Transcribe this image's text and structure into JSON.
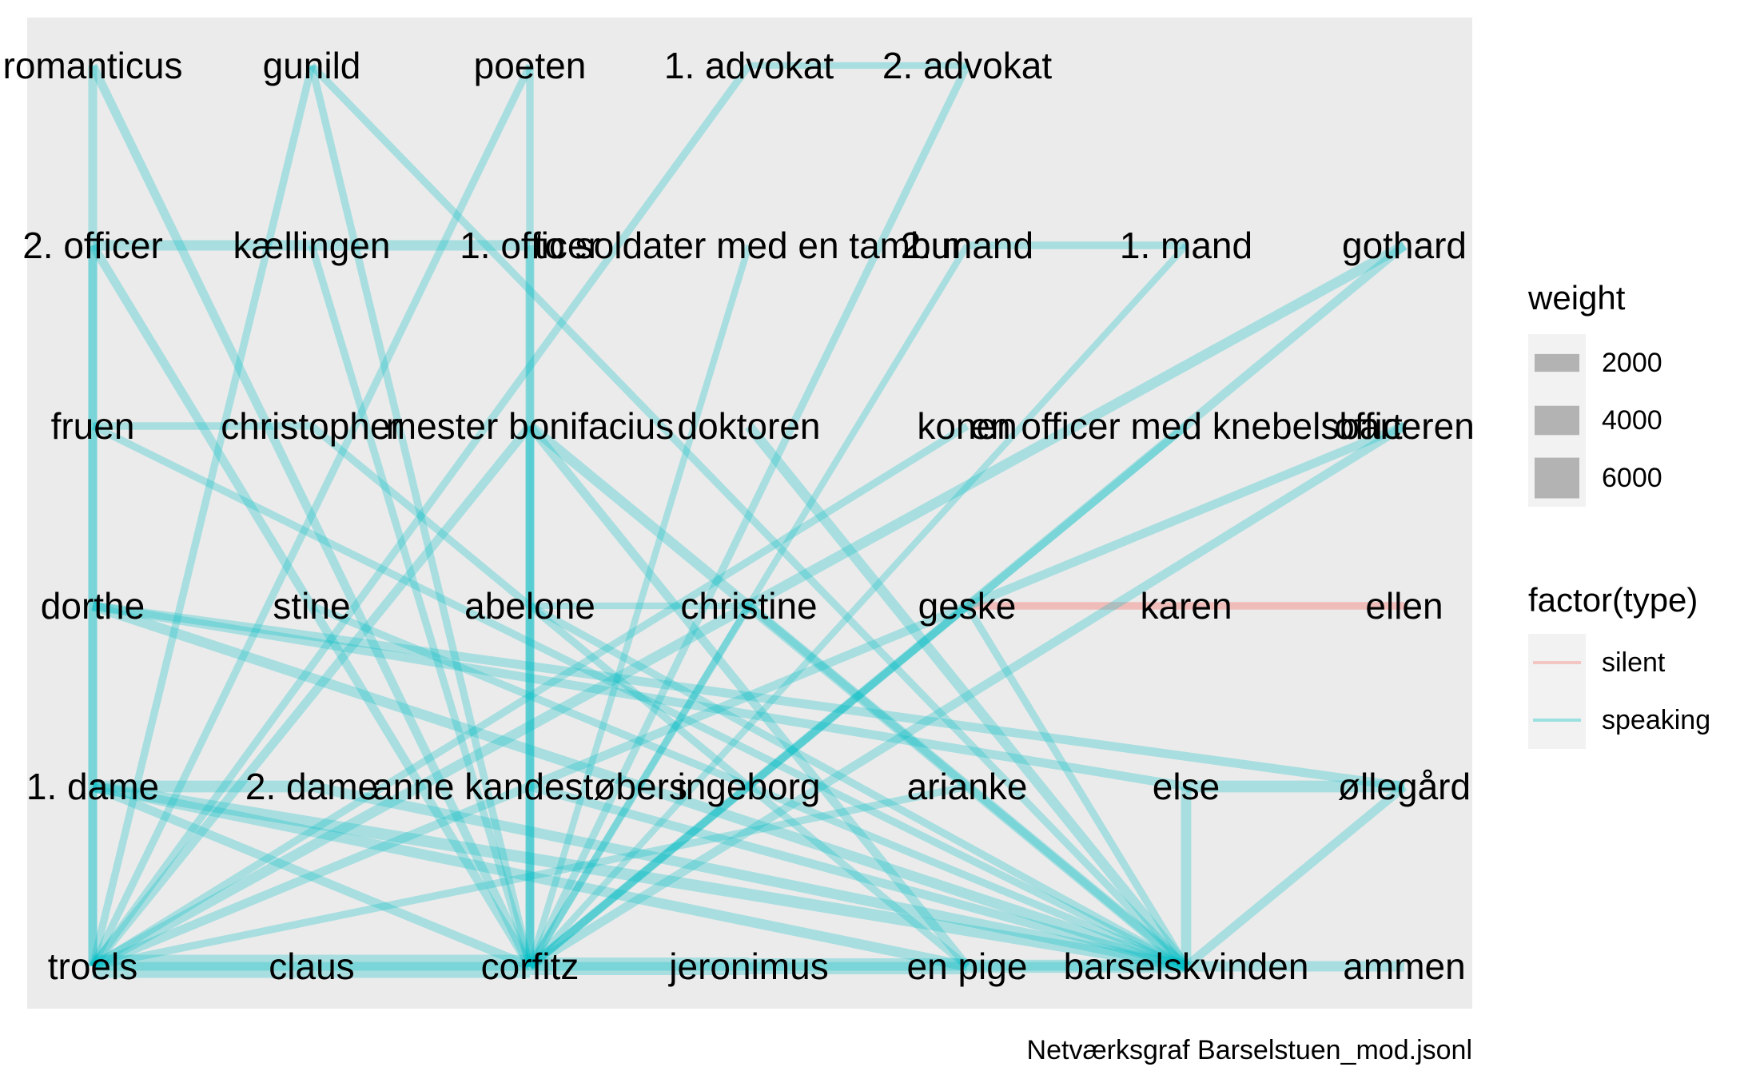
{
  "caption": "Netværksgraf Barselstuen_mod.jsonl",
  "colors": {
    "panel": "#EBEBEB",
    "speaking": "#00BFC4",
    "silent": "#F8766D",
    "weight_key": "#B3B3B3",
    "legend_bg": "#F2F2F2"
  },
  "legend": {
    "weight": {
      "title": "weight",
      "items": [
        {
          "label": "2000",
          "value": 2000
        },
        {
          "label": "4000",
          "value": 4000
        },
        {
          "label": "6000",
          "value": 6000
        }
      ]
    },
    "type": {
      "title": "factor(type)",
      "items": [
        {
          "label": "silent",
          "key": "silent"
        },
        {
          "label": "speaking",
          "key": "speaking"
        }
      ]
    }
  },
  "nodes": [
    {
      "id": "romanticus",
      "label": "romanticus",
      "col": 0,
      "row": 0
    },
    {
      "id": "gunild",
      "label": "gunild",
      "col": 1,
      "row": 0
    },
    {
      "id": "poeten",
      "label": "poeten",
      "col": 2,
      "row": 0
    },
    {
      "id": "advokat1",
      "label": "1. advokat",
      "col": 3,
      "row": 0
    },
    {
      "id": "advokat2",
      "label": "2. advokat",
      "col": 4,
      "row": 0
    },
    {
      "id": "officer2",
      "label": "2. officer",
      "col": 0,
      "row": 1
    },
    {
      "id": "kaellingen",
      "label": "kællingen",
      "col": 1,
      "row": 1
    },
    {
      "id": "officer1",
      "label": "1. officer",
      "col": 2,
      "row": 1
    },
    {
      "id": "soldater",
      "label": "to soldater med en tambur",
      "col": 3,
      "row": 1
    },
    {
      "id": "mand2",
      "label": "2. mand",
      "col": 4,
      "row": 1
    },
    {
      "id": "mand1",
      "label": "1. mand",
      "col": 5,
      "row": 1
    },
    {
      "id": "gothard",
      "label": "gothard",
      "col": 6,
      "row": 1
    },
    {
      "id": "fruen",
      "label": "fruen",
      "col": 0,
      "row": 2
    },
    {
      "id": "christopher",
      "label": "christopher",
      "col": 1,
      "row": 2
    },
    {
      "id": "bonifacius",
      "label": "mester bonifacius",
      "col": 2,
      "row": 2
    },
    {
      "id": "doktoren",
      "label": "doktoren",
      "col": 3,
      "row": 2
    },
    {
      "id": "konen",
      "label": "konen",
      "col": 4,
      "row": 2
    },
    {
      "id": "knebelsbart",
      "label": "en officer med knebelsbart",
      "col": 5,
      "row": 2
    },
    {
      "id": "officeren",
      "label": "officeren",
      "col": 6,
      "row": 2
    },
    {
      "id": "dorthe",
      "label": "dorthe",
      "col": 0,
      "row": 3
    },
    {
      "id": "stine",
      "label": "stine",
      "col": 1,
      "row": 3
    },
    {
      "id": "abelone",
      "label": "abelone",
      "col": 2,
      "row": 3
    },
    {
      "id": "christine",
      "label": "christine",
      "col": 3,
      "row": 3
    },
    {
      "id": "geske",
      "label": "geske",
      "col": 4,
      "row": 3
    },
    {
      "id": "karen",
      "label": "karen",
      "col": 5,
      "row": 3
    },
    {
      "id": "ellen",
      "label": "ellen",
      "col": 6,
      "row": 3
    },
    {
      "id": "dame1",
      "label": "1. dame",
      "col": 0,
      "row": 4
    },
    {
      "id": "dame2",
      "label": "2. dame",
      "col": 1,
      "row": 4
    },
    {
      "id": "anne",
      "label": "anne kandestøbers",
      "col": 2,
      "row": 4
    },
    {
      "id": "ingeborg",
      "label": "ingeborg",
      "col": 3,
      "row": 4
    },
    {
      "id": "arianke",
      "label": "arianke",
      "col": 4,
      "row": 4
    },
    {
      "id": "else",
      "label": "else",
      "col": 5,
      "row": 4
    },
    {
      "id": "ollegard",
      "label": "øllegård",
      "col": 6,
      "row": 4
    },
    {
      "id": "troels",
      "label": "troels",
      "col": 0,
      "row": 5
    },
    {
      "id": "claus",
      "label": "claus",
      "col": 1,
      "row": 5
    },
    {
      "id": "corfitz",
      "label": "corfitz",
      "col": 2,
      "row": 5
    },
    {
      "id": "jeronimus",
      "label": "jeronimus",
      "col": 3,
      "row": 5
    },
    {
      "id": "pige",
      "label": "en pige",
      "col": 4,
      "row": 5
    },
    {
      "id": "barselskvinden",
      "label": "barselskvinden",
      "col": 5,
      "row": 5
    },
    {
      "id": "ammen",
      "label": "ammen",
      "col": 6,
      "row": 5
    }
  ],
  "edges": [
    {
      "from": "advokat1",
      "to": "advokat2",
      "type": "speaking",
      "weight": 1200
    },
    {
      "from": "officer2",
      "to": "kaellingen",
      "type": "speaking",
      "weight": 2500
    },
    {
      "from": "kaellingen",
      "to": "officer1",
      "type": "speaking",
      "weight": 2500
    },
    {
      "from": "mand2",
      "to": "mand1",
      "type": "speaking",
      "weight": 1500
    },
    {
      "from": "fruen",
      "to": "christopher",
      "type": "speaking",
      "weight": 1500
    },
    {
      "from": "abelone",
      "to": "christine",
      "type": "speaking",
      "weight": 1200
    },
    {
      "from": "geske",
      "to": "karen",
      "type": "silent",
      "weight": 1500
    },
    {
      "from": "karen",
      "to": "ellen",
      "type": "silent",
      "weight": 1500
    },
    {
      "from": "dame1",
      "to": "dame2",
      "type": "speaking",
      "weight": 3000
    },
    {
      "from": "else",
      "to": "ollegard",
      "type": "speaking",
      "weight": 3000
    },
    {
      "from": "troels",
      "to": "claus",
      "type": "speaking",
      "weight": 7000
    },
    {
      "from": "claus",
      "to": "corfitz",
      "type": "speaking",
      "weight": 7000
    },
    {
      "from": "corfitz",
      "to": "jeronimus",
      "type": "speaking",
      "weight": 5000
    },
    {
      "from": "jeronimus",
      "to": "pige",
      "type": "speaking",
      "weight": 4500
    },
    {
      "from": "pige",
      "to": "barselskvinden",
      "type": "speaking",
      "weight": 3500
    },
    {
      "from": "barselskvinden",
      "to": "ammen",
      "type": "speaking",
      "weight": 2500
    },
    {
      "from": "romanticus",
      "to": "troels",
      "type": "speaking",
      "weight": 2000
    },
    {
      "from": "romanticus",
      "to": "corfitz",
      "type": "speaking",
      "weight": 2000
    },
    {
      "from": "gunild",
      "to": "troels",
      "type": "speaking",
      "weight": 1500
    },
    {
      "from": "gunild",
      "to": "corfitz",
      "type": "speaking",
      "weight": 1500
    },
    {
      "from": "gunild",
      "to": "barselskvinden",
      "type": "speaking",
      "weight": 1500
    },
    {
      "from": "poeten",
      "to": "corfitz",
      "type": "speaking",
      "weight": 1500
    },
    {
      "from": "poeten",
      "to": "troels",
      "type": "speaking",
      "weight": 1500
    },
    {
      "from": "advokat1",
      "to": "troels",
      "type": "speaking",
      "weight": 1500
    },
    {
      "from": "advokat2",
      "to": "corfitz",
      "type": "speaking",
      "weight": 1500
    },
    {
      "from": "officer2",
      "to": "troels",
      "type": "speaking",
      "weight": 2000
    },
    {
      "from": "officer2",
      "to": "corfitz",
      "type": "speaking",
      "weight": 2000
    },
    {
      "from": "kaellingen",
      "to": "corfitz",
      "type": "speaking",
      "weight": 1500
    },
    {
      "from": "officer1",
      "to": "corfitz",
      "type": "speaking",
      "weight": 2000
    },
    {
      "from": "soldater",
      "to": "corfitz",
      "type": "speaking",
      "weight": 1200
    },
    {
      "from": "mand2",
      "to": "corfitz",
      "type": "speaking",
      "weight": 1200
    },
    {
      "from": "mand1",
      "to": "corfitz",
      "type": "speaking",
      "weight": 1200
    },
    {
      "from": "gothard",
      "to": "troels",
      "type": "speaking",
      "weight": 2500
    },
    {
      "from": "gothard",
      "to": "corfitz",
      "type": "speaking",
      "weight": 2000
    },
    {
      "from": "fruen",
      "to": "barselskvinden",
      "type": "speaking",
      "weight": 1500
    },
    {
      "from": "christopher",
      "to": "pige",
      "type": "speaking",
      "weight": 1500
    },
    {
      "from": "bonifacius",
      "to": "troels",
      "type": "speaking",
      "weight": 2000
    },
    {
      "from": "bonifacius",
      "to": "corfitz",
      "type": "speaking",
      "weight": 2000
    },
    {
      "from": "bonifacius",
      "to": "barselskvinden",
      "type": "speaking",
      "weight": 2500
    },
    {
      "from": "bonifacius",
      "to": "pige",
      "type": "speaking",
      "weight": 2000
    },
    {
      "from": "doktoren",
      "to": "barselskvinden",
      "type": "speaking",
      "weight": 2500
    },
    {
      "from": "konen",
      "to": "troels",
      "type": "speaking",
      "weight": 1500
    },
    {
      "from": "knebelsbart",
      "to": "corfitz",
      "type": "speaking",
      "weight": 1500
    },
    {
      "from": "officeren",
      "to": "corfitz",
      "type": "speaking",
      "weight": 2000
    },
    {
      "from": "officeren",
      "to": "troels",
      "type": "speaking",
      "weight": 2000
    },
    {
      "from": "dorthe",
      "to": "barselskvinden",
      "type": "speaking",
      "weight": 2500
    },
    {
      "from": "dorthe",
      "to": "ollegard",
      "type": "speaking",
      "weight": 2000
    },
    {
      "from": "dorthe",
      "to": "else",
      "type": "speaking",
      "weight": 2000
    },
    {
      "from": "stine",
      "to": "barselskvinden",
      "type": "speaking",
      "weight": 1500
    },
    {
      "from": "abelone",
      "to": "barselskvinden",
      "type": "speaking",
      "weight": 1500
    },
    {
      "from": "christine",
      "to": "corfitz",
      "type": "speaking",
      "weight": 1500
    },
    {
      "from": "christine",
      "to": "barselskvinden",
      "type": "speaking",
      "weight": 1500
    },
    {
      "from": "geske",
      "to": "corfitz",
      "type": "speaking",
      "weight": 1500
    },
    {
      "from": "geske",
      "to": "barselskvinden",
      "type": "speaking",
      "weight": 1500
    },
    {
      "from": "dame1",
      "to": "barselskvinden",
      "type": "speaking",
      "weight": 3000
    },
    {
      "from": "dame1",
      "to": "pige",
      "type": "speaking",
      "weight": 2500
    },
    {
      "from": "dame1",
      "to": "corfitz",
      "type": "speaking",
      "weight": 2000
    },
    {
      "from": "dame2",
      "to": "barselskvinden",
      "type": "speaking",
      "weight": 2500
    },
    {
      "from": "anne",
      "to": "barselskvinden",
      "type": "speaking",
      "weight": 2000
    },
    {
      "from": "arianke",
      "to": "troels",
      "type": "speaking",
      "weight": 1500
    },
    {
      "from": "else",
      "to": "barselskvinden",
      "type": "speaking",
      "weight": 2500
    },
    {
      "from": "ollegard",
      "to": "barselskvinden",
      "type": "speaking",
      "weight": 2000
    },
    {
      "from": "troels",
      "to": "barselskvinden",
      "type": "speaking",
      "weight": 2000
    }
  ]
}
